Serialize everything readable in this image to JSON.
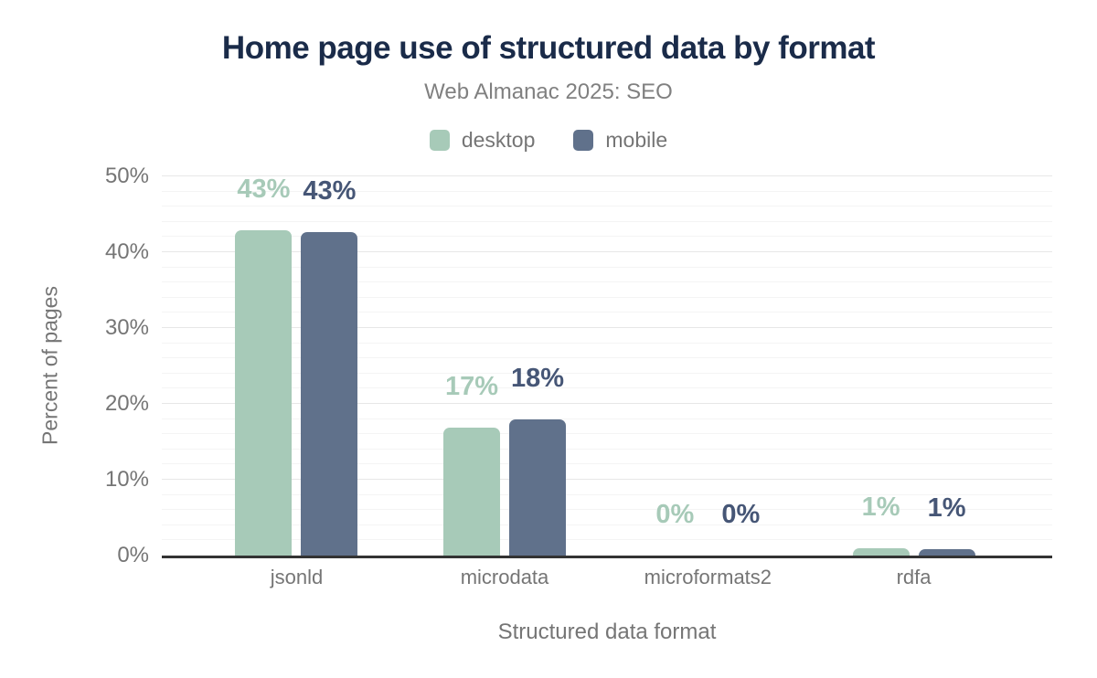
{
  "title": "Home page use of structured data by format",
  "subtitle": "Web Almanac 2025: SEO",
  "colors": {
    "title": "#1a2b49",
    "subtitle": "#808080",
    "tick_labels": "#757575",
    "axis_titles": "#757575",
    "axis_line": "#333333",
    "gridline_major": "#e7e7e7",
    "gridline_minor": "#f4f4f4",
    "desktop": "#a7cab8",
    "mobile": "#60718b",
    "desktop_annotation": "#a7cab8",
    "mobile_annotation": "#465676"
  },
  "chart_data": {
    "type": "bar",
    "title": "Home page use of structured data by format",
    "subtitle": "Web Almanac 2025: SEO",
    "categories": [
      "jsonld",
      "microdata",
      "microformats2",
      "rdfa"
    ],
    "series": [
      {
        "name": "desktop",
        "color": "#a7cab8",
        "annotation_color": "#a7cab8",
        "values": [
          42.9,
          16.9,
          0,
          1.0
        ],
        "labels": [
          "43%",
          "17%",
          "0%",
          "1%"
        ]
      },
      {
        "name": "mobile",
        "color": "#60718b",
        "annotation_color": "#465676",
        "values": [
          42.6,
          17.9,
          0,
          0.9
        ],
        "labels": [
          "43%",
          "18%",
          "0%",
          "1%"
        ]
      }
    ],
    "xlabel": "Structured data format",
    "ylabel": "Percent of pages",
    "ylim": [
      0,
      50
    ],
    "y_ticks": [
      {
        "value": 0,
        "label": "0%"
      },
      {
        "value": 10,
        "label": "10%"
      },
      {
        "value": 20,
        "label": "20%"
      },
      {
        "value": 30,
        "label": "30%"
      },
      {
        "value": 40,
        "label": "40%"
      },
      {
        "value": 50,
        "label": "50%"
      }
    ],
    "gridlines": {
      "minor_step": 2,
      "major_step": 10,
      "grid_on": true
    },
    "legend_position": "top"
  }
}
